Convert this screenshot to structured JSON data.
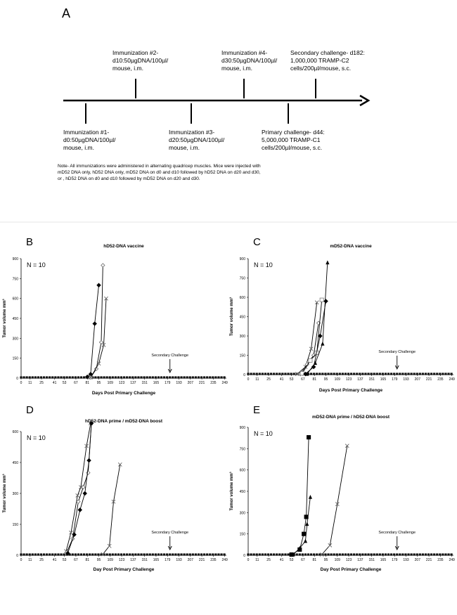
{
  "panel_a": {
    "letter": "A",
    "events_top": [
      {
        "lines": [
          "Immunization #2-",
          "d10:50µgDNA/100µl/",
          "mouse, i.m."
        ]
      },
      {
        "lines": [
          "Immunization #4-",
          "d30:50µgDNA/100µl/",
          "mouse, i.m."
        ]
      },
      {
        "lines": [
          "Secondary challenge- d182:",
          "1,000,000 TRAMP-C2",
          "cells/200µl/mouse, s.c."
        ]
      }
    ],
    "events_bottom": [
      {
        "lines": [
          "Immunization #1-",
          "d0:50µgDNA/100µl/",
          "mouse, i.m."
        ]
      },
      {
        "lines": [
          "Immunization #3-",
          "d20:50µgDNA/100µl/",
          "mouse, i.m."
        ]
      },
      {
        "lines": [
          "Primary challenge- d44:",
          "5,000,000 TRAMP-C1",
          "cells/200µl/mouse, s.c."
        ]
      }
    ],
    "note_lines": [
      "Note- All immunizations were administered in alternating quadricep muscles. Mice were injected with",
      "mD52 DNA only,  hD52 DNA only, mD52 DNA on d0 and d10 followed by hD52 DNA on d20 and d30,",
      "or , hD52 DNA on d0 and d10 followed by mD52 DNA on d20 and d30."
    ]
  },
  "chart_data": [
    {
      "panel": "B",
      "type": "line",
      "title": "hD52-DNA vaccine",
      "n_label": "N = 10",
      "xlabel": "Days Post Primary Challenge",
      "ylabel": "Tumor volume mm³",
      "yticks": [
        0,
        150,
        300,
        450,
        600,
        750,
        900
      ],
      "ylim": [
        0,
        900
      ],
      "xlim": [
        0,
        251
      ],
      "x_ticks": [
        0,
        11,
        25,
        41,
        53,
        67,
        81,
        95,
        109,
        123,
        137,
        151,
        165,
        179,
        193,
        207,
        221,
        235,
        249
      ],
      "annotation": "Secondary Challenge",
      "annotation_x": 182,
      "series": [
        {
          "marker": "diamond-filled",
          "x": [
            81,
            85,
            90,
            95
          ],
          "y": [
            10,
            30,
            410,
            700
          ]
        },
        {
          "marker": "diamond-open",
          "x": [
            85,
            92,
            98,
            100
          ],
          "y": [
            5,
            70,
            270,
            850
          ]
        },
        {
          "marker": "x",
          "x": [
            85,
            95,
            101,
            104
          ],
          "y": [
            5,
            110,
            250,
            600
          ]
        }
      ]
    },
    {
      "panel": "C",
      "type": "line",
      "title": "mD52-DNA vaccine",
      "n_label": "N = 10",
      "xlabel": "Days Post Primary Challenge",
      "ylabel": "Tumor volume mm³",
      "yticks": [
        0,
        150,
        300,
        450,
        600,
        750,
        900
      ],
      "ylim": [
        0,
        900
      ],
      "xlim": [
        0,
        251
      ],
      "x_ticks": [
        0,
        11,
        25,
        41,
        53,
        67,
        81,
        95,
        109,
        123,
        137,
        151,
        165,
        179,
        193,
        207,
        221,
        235,
        249
      ],
      "annotation": "Secondary Challenge",
      "annotation_x": 182,
      "series": [
        {
          "marker": "x",
          "x": [
            60,
            70,
            77,
            84
          ],
          "y": [
            5,
            60,
            200,
            560
          ]
        },
        {
          "marker": "diamond-open",
          "x": [
            64,
            72,
            80,
            86
          ],
          "y": [
            5,
            80,
            150,
            400
          ]
        },
        {
          "marker": "square-open",
          "x": [
            66,
            76,
            84,
            90
          ],
          "y": [
            10,
            110,
            170,
            580
          ]
        },
        {
          "marker": "diamond-filled",
          "x": [
            70,
            80,
            88,
            95
          ],
          "y": [
            5,
            60,
            300,
            570
          ]
        },
        {
          "marker": "triangle-filled",
          "x": [
            72,
            82,
            91,
            97
          ],
          "y": [
            5,
            90,
            240,
            870
          ]
        }
      ]
    },
    {
      "panel": "D",
      "type": "line",
      "title": "hD52-DNA prime / mD52-DNA boost",
      "n_label": "N = 10",
      "xlabel": "Day Post Primary Challenge",
      "ylabel": "Tumor volume mm³",
      "yticks": [
        0,
        150,
        300,
        450,
        600
      ],
      "ylim": [
        0,
        600
      ],
      "xlim": [
        0,
        251
      ],
      "x_ticks": [
        0,
        11,
        25,
        41,
        53,
        67,
        81,
        95,
        109,
        123,
        137,
        151,
        165,
        179,
        193,
        207,
        221,
        235,
        249
      ],
      "annotation": "Secondary Challenge",
      "annotation_x": 182,
      "series": [
        {
          "marker": "x",
          "x": [
            55,
            61,
            69,
            73,
            80,
            85
          ],
          "y": [
            20,
            110,
            290,
            330,
            530,
            640
          ]
        },
        {
          "marker": "diamond-open",
          "x": [
            56,
            63,
            70,
            76,
            82,
            86
          ],
          "y": [
            15,
            80,
            260,
            330,
            400,
            640
          ]
        },
        {
          "marker": "diamond-filled",
          "x": [
            57,
            65,
            72,
            78,
            83,
            86
          ],
          "y": [
            10,
            100,
            220,
            300,
            460,
            640
          ]
        },
        {
          "marker": "x",
          "x": [
            100,
            108,
            113,
            121
          ],
          "y": [
            5,
            45,
            260,
            440
          ]
        }
      ]
    },
    {
      "panel": "E",
      "type": "line",
      "title": "mD52-DNA prime / hD52-DNA boost",
      "n_label": "N = 10",
      "xlabel": "Day Post Primary Challenge",
      "ylabel": "Tumor volume mm³",
      "yticks": [
        0,
        150,
        300,
        450,
        600,
        750,
        900
      ],
      "ylim": [
        0,
        900
      ],
      "xlim": [
        0,
        251
      ],
      "x_ticks": [
        0,
        11,
        25,
        41,
        53,
        67,
        81,
        95,
        109,
        123,
        137,
        151,
        165,
        179,
        193,
        207,
        221,
        235,
        249
      ],
      "annotation": "Secondary Challenge",
      "annotation_x": 182,
      "series": [
        {
          "marker": "square-filled",
          "x": [
            53,
            63,
            68,
            71,
            74
          ],
          "y": [
            5,
            40,
            150,
            270,
            830
          ]
        },
        {
          "marker": "triangle-filled",
          "x": [
            55,
            63,
            70,
            72,
            76
          ],
          "y": [
            5,
            50,
            100,
            220,
            410
          ]
        },
        {
          "marker": "x",
          "x": [
            90,
            100,
            109,
            121
          ],
          "y": [
            5,
            70,
            360,
            770
          ]
        }
      ]
    }
  ]
}
